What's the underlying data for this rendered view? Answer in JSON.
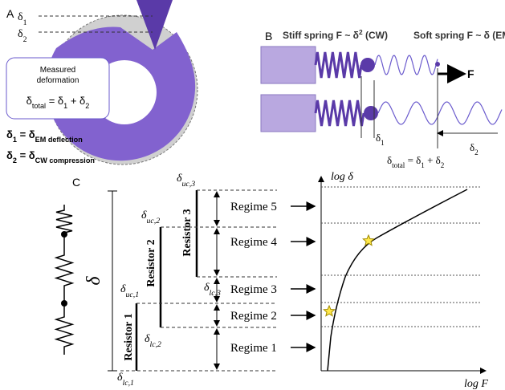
{
  "panel_a": {
    "label": "A",
    "marker_1": [
      {
        "t": "δ"
      },
      {
        "sub": "1"
      }
    ],
    "marker_2": [
      {
        "t": "δ"
      },
      {
        "sub": "2"
      }
    ],
    "box_title_1": "Measured",
    "box_title_2": "deformation",
    "box_equation": [
      {
        "t": "δ"
      },
      {
        "sub": "total"
      },
      {
        "t": " = δ"
      },
      {
        "sub": "1"
      },
      {
        "t": " + δ"
      },
      {
        "sub": "2"
      }
    ],
    "def_1": [
      {
        "t": "δ"
      },
      {
        "sub": "1"
      },
      {
        "t": " = δ"
      },
      {
        "sub": "EM deflection"
      }
    ],
    "def_2": [
      {
        "t": "δ"
      },
      {
        "sub": "2"
      },
      {
        "t": " = δ"
      },
      {
        "sub": "CW compression"
      }
    ]
  },
  "panel_b": {
    "label": "B",
    "stiff_title": [
      {
        "t": "Stiff spring F ~ δ"
      },
      {
        "sup": "2"
      },
      {
        "t": " (CW)"
      }
    ],
    "soft_title": "Soft spring F ~ δ (EM)",
    "force": "F",
    "delta_1": [
      {
        "t": "δ"
      },
      {
        "sub": "1"
      }
    ],
    "delta_2": [
      {
        "t": "δ"
      },
      {
        "sub": "2"
      }
    ],
    "equation": [
      {
        "t": "δ"
      },
      {
        "sub": "total"
      },
      {
        "t": " = δ"
      },
      {
        "sub": "1"
      },
      {
        "t": " + δ"
      },
      {
        "sub": "2"
      }
    ]
  },
  "panel_c": {
    "label": "C",
    "delta": "δ",
    "resistors": [
      "Resistor 1",
      "Resistor 2",
      "Resistor 3"
    ],
    "levels": {
      "uc3": [
        {
          "t": "δ"
        },
        {
          "sub": "uc,3"
        }
      ],
      "uc2": [
        {
          "t": "δ"
        },
        {
          "sub": "uc,2"
        }
      ],
      "lc3": [
        {
          "t": "δ"
        },
        {
          "sub": "lc,3"
        }
      ],
      "uc1": [
        {
          "t": "δ"
        },
        {
          "sub": "uc,1"
        }
      ],
      "lc2": [
        {
          "t": "δ"
        },
        {
          "sub": "lc,2"
        }
      ],
      "lc1": [
        {
          "t": "δ"
        },
        {
          "sub": "lc,1"
        }
      ]
    },
    "regimes": [
      "Regime 5",
      "Regime 4",
      "Regime 3",
      "Regime 2",
      "Regime 1"
    ],
    "y_axis": "log δ",
    "x_axis": "log F"
  }
}
